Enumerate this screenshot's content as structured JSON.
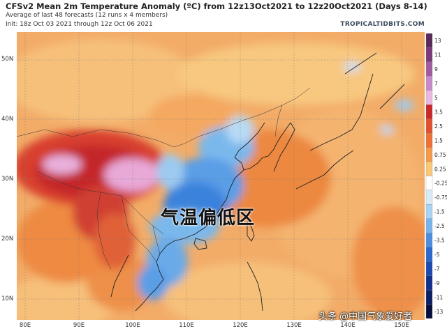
{
  "header": {
    "title": "CFSv2 Mean 2m Temperature Anomaly (ºC) from 12z13Oct2021 to 12z20Oct2021 (Days 8-14)",
    "subtitle1": "Average of last 48 forecasts (12 runs x 4 members)",
    "subtitle2": "Init: 18z Oct 03 2021 through 12z Oct 06 2021",
    "credit": "TROPICALTIDBITS.COM"
  },
  "axes": {
    "lat_labels": [
      "50N",
      "40N",
      "30N",
      "20N",
      "10N"
    ],
    "lon_labels": [
      "80E",
      "90E",
      "100E",
      "110E",
      "120E",
      "130E",
      "140E",
      "150E"
    ]
  },
  "colorbar": {
    "ticks": [
      "13",
      "11",
      "9",
      "7",
      "5",
      "3.5",
      "2.5",
      "1.5",
      "0.75",
      "0.25",
      "-0.25",
      "-0.75",
      "-1.5",
      "-2.5",
      "-3.5",
      "-5",
      "-7",
      "-9",
      "-11",
      "-13"
    ],
    "colors": [
      "#5a2a5a",
      "#7a3a7a",
      "#a05aa0",
      "#c88ac8",
      "#e8b8e0",
      "#c8282a",
      "#e05030",
      "#ee7038",
      "#f49a4a",
      "#f8c878",
      "#ffffff",
      "#d8ecf8",
      "#a8d4f4",
      "#78b4ec",
      "#4a8ee0",
      "#2a6acc",
      "#1a4ab0",
      "#10308c",
      "#0a2066",
      "#061040"
    ]
  },
  "overlay_text": "气温偏低区",
  "watermark": "头条 @中国气象爱好者",
  "map_colors": {
    "ocean_warm": "#f0a05a",
    "warm": "#f6c07a",
    "hot": "#c8282a",
    "extreme": "#e8a8d8",
    "cool": "#7ab8ec",
    "cold": "#3a82dc",
    "coast": "#222222"
  }
}
